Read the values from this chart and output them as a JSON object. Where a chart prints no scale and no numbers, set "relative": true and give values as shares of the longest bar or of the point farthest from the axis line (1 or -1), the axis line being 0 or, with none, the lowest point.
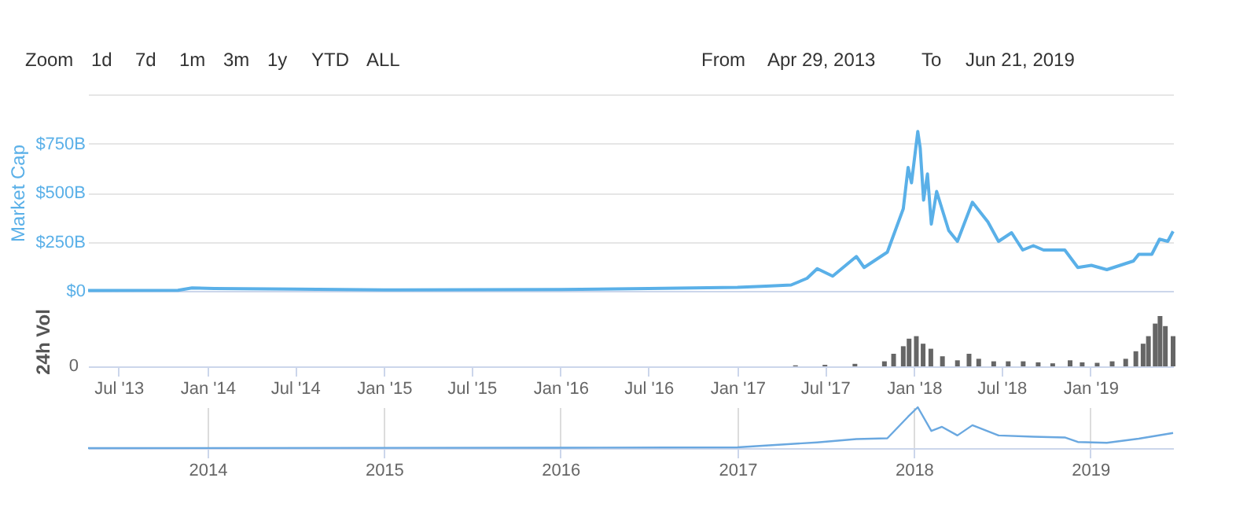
{
  "chart_data": [
    {
      "type": "line",
      "ylabel": "Market Cap",
      "grid": "y",
      "tick_labels": "y",
      "annotations": [
        "Zoom",
        "1d",
        "7d",
        "1m",
        "3m",
        "1y",
        "YTD",
        "ALL",
        "From",
        "Apr 29, 2013",
        "To",
        "Jun 21, 2019"
      ],
      "xlim": [
        "2013-04-29",
        "2019-06-21"
      ],
      "ylim": [
        0,
        1000
      ],
      "yticks": [
        {
          "value": 0,
          "label": "$0"
        },
        {
          "value": 250,
          "label": "$250B"
        },
        {
          "value": 500,
          "label": "$500B"
        },
        {
          "value": 750,
          "label": "$750B"
        },
        {
          "value": 1000,
          "label": null
        }
      ],
      "x": [
        "2013-04-29",
        "2013-11-01",
        "2013-11-30",
        "2014-01-15",
        "2014-07-01",
        "2015-01-01",
        "2016-01-01",
        "2016-07-01",
        "2017-01-01",
        "2017-03-01",
        "2017-04-22",
        "2017-05-25",
        "2017-06-15",
        "2017-07-17",
        "2017-09-04",
        "2017-09-20",
        "2017-11-07",
        "2017-12-10",
        "2017-12-20",
        "2017-12-27",
        "2018-01-09",
        "2018-01-14",
        "2018-01-21",
        "2018-01-29",
        "2018-02-06",
        "2018-02-17",
        "2018-02-28",
        "2018-03-14",
        "2018-04-01",
        "2018-05-02",
        "2018-06-03",
        "2018-06-25",
        "2018-07-22",
        "2018-08-14",
        "2018-09-05",
        "2018-09-26",
        "2018-11-09",
        "2018-12-06",
        "2019-01-03",
        "2019-02-04",
        "2019-03-31",
        "2019-04-11",
        "2019-05-08",
        "2019-05-24",
        "2019-06-10",
        "2019-06-21"
      ],
      "series": [
        {
          "color": "#5ab0e8",
          "values": [
            2,
            3,
            15,
            12,
            9,
            5,
            7,
            12,
            18,
            24,
            30,
            64,
            113,
            75,
            175,
            119,
            197,
            418,
            628,
            550,
            811,
            727,
            462,
            595,
            340,
            506,
            418,
            307,
            252,
            451,
            351,
            252,
            296,
            208,
            230,
            208,
            208,
            119,
            130,
            108,
            152,
            186,
            186,
            263,
            252,
            303
          ]
        }
      ]
    },
    {
      "type": "bar",
      "relative": true,
      "ylabel": "24h Vol",
      "annotations": [
        "0"
      ],
      "xlim": [
        "2013-04-29",
        "2019-06-21"
      ],
      "xticks": [
        {
          "value": "2013-07-01",
          "label": "Jul '13"
        },
        {
          "value": "2014-01-01",
          "label": "Jan '14"
        },
        {
          "value": "2014-07-01",
          "label": "Jul '14"
        },
        {
          "value": "2015-01-01",
          "label": "Jan '15"
        },
        {
          "value": "2015-07-01",
          "label": "Jul '15"
        },
        {
          "value": "2016-01-01",
          "label": "Jan '16"
        },
        {
          "value": "2016-07-01",
          "label": "Jul '16"
        },
        {
          "value": "2017-01-01",
          "label": "Jan '17"
        },
        {
          "value": "2017-07-01",
          "label": "Jul '17"
        },
        {
          "value": "2018-01-01",
          "label": "Jan '18"
        },
        {
          "value": "2018-07-01",
          "label": "Jul '18"
        },
        {
          "value": "2019-01-01",
          "label": "Jan '19"
        }
      ],
      "x": [
        "2017-05-01",
        "2017-07-01",
        "2017-09-01",
        "2017-11-01",
        "2017-11-20",
        "2017-12-10",
        "2017-12-22",
        "2018-01-06",
        "2018-01-20",
        "2018-02-05",
        "2018-03-01",
        "2018-04-01",
        "2018-04-25",
        "2018-05-15",
        "2018-06-15",
        "2018-07-15",
        "2018-08-15",
        "2018-09-15",
        "2018-10-15",
        "2018-11-20",
        "2018-12-15",
        "2019-01-15",
        "2019-02-15",
        "2019-03-15",
        "2019-04-05",
        "2019-04-20",
        "2019-05-01",
        "2019-05-15",
        "2019-05-25",
        "2019-06-05",
        "2019-06-21"
      ],
      "series": [
        {
          "color": "#666666",
          "values": [
            0.02,
            0.03,
            0.05,
            0.1,
            0.25,
            0.4,
            0.55,
            0.6,
            0.45,
            0.35,
            0.2,
            0.12,
            0.25,
            0.15,
            0.1,
            0.1,
            0.1,
            0.08,
            0.06,
            0.12,
            0.08,
            0.07,
            0.1,
            0.15,
            0.3,
            0.45,
            0.6,
            0.85,
            1.0,
            0.8,
            0.6
          ]
        }
      ]
    },
    {
      "type": "line",
      "relative": true,
      "grid": "x",
      "xlim": [
        "2013-04-29",
        "2019-06-21"
      ],
      "xticks": [
        {
          "value": "2014-01-01",
          "label": "2014"
        },
        {
          "value": "2015-01-01",
          "label": "2015"
        },
        {
          "value": "2016-01-01",
          "label": "2016"
        },
        {
          "value": "2017-01-01",
          "label": "2017"
        },
        {
          "value": "2018-01-01",
          "label": "2018"
        },
        {
          "value": "2019-01-01",
          "label": "2019"
        }
      ],
      "x": [
        "2013-04-29",
        "2016-01-01",
        "2017-01-01",
        "2017-06-15",
        "2017-09-04",
        "2017-11-07",
        "2017-12-20",
        "2018-01-09",
        "2018-02-06",
        "2018-02-28",
        "2018-04-01",
        "2018-05-02",
        "2018-06-25",
        "2018-09-05",
        "2018-11-09",
        "2018-12-06",
        "2019-02-04",
        "2019-04-11",
        "2019-06-21"
      ],
      "series": [
        {
          "color": "#6aa8e0",
          "values": [
            0,
            0.01,
            0.02,
            0.14,
            0.22,
            0.24,
            0.77,
            1,
            0.42,
            0.52,
            0.31,
            0.56,
            0.31,
            0.28,
            0.26,
            0.15,
            0.13,
            0.23,
            0.37
          ]
        }
      ]
    }
  ]
}
